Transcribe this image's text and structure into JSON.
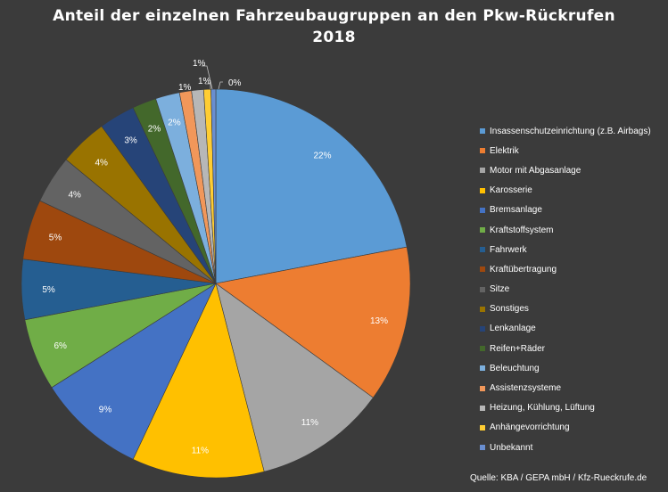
{
  "title_line1": "Anteil der einzelnen Fahrzeubaugruppen an den Pkw-Rückrufen",
  "title_line2": "2018",
  "source": "Quelle: KBA / GEPA mbH / Kfz-Rueckrufe.de",
  "chart_data": {
    "type": "pie",
    "title": "Anteil der einzelnen Fahrzeubaugruppen an den Pkw-Rückrufen 2018",
    "unit": "%",
    "legend_position": "right",
    "slices": [
      {
        "name": "Insassenschutzeinrichtung (z.B. Airbags)",
        "value": 22,
        "label": "22%",
        "color": "#5b9bd5"
      },
      {
        "name": "Elektrik",
        "value": 13,
        "label": "13%",
        "color": "#ed7d31"
      },
      {
        "name": "Motor mit Abgasanlage",
        "value": 11,
        "label": "11%",
        "color": "#a5a5a5"
      },
      {
        "name": "Karosserie",
        "value": 11,
        "label": "11%",
        "color": "#ffc000"
      },
      {
        "name": "Bremsanlage",
        "value": 9,
        "label": "9%",
        "color": "#4472c4"
      },
      {
        "name": "Kraftstoffsystem",
        "value": 6,
        "label": "6%",
        "color": "#70ad47"
      },
      {
        "name": "Fahrwerk",
        "value": 5,
        "label": "5%",
        "color": "#255e91"
      },
      {
        "name": "Kraftübertragung",
        "value": 5,
        "label": "5%",
        "color": "#9e480e"
      },
      {
        "name": "Sitze",
        "value": 4,
        "label": "4%",
        "color": "#636363"
      },
      {
        "name": "Sonstiges",
        "value": 4,
        "label": "4%",
        "color": "#997300"
      },
      {
        "name": "Lenkanlage",
        "value": 3,
        "label": "3%",
        "color": "#264478"
      },
      {
        "name": "Reifen+Räder",
        "value": 2,
        "label": "2%",
        "color": "#43682b"
      },
      {
        "name": "Beleuchtung",
        "value": 2,
        "label": "2%",
        "color": "#7cafdd"
      },
      {
        "name": "Assistenzsysteme",
        "value": 1,
        "label": "1%",
        "color": "#f1975a"
      },
      {
        "name": "Heizung, Kühlung, Lüftung",
        "value": 1,
        "label": "1%",
        "color": "#b7b7b7"
      },
      {
        "name": "Anhängevorrichtung",
        "value": 0.6,
        "label": "1%",
        "color": "#ffcd33"
      },
      {
        "name": "Unbekannt",
        "value": 0.4,
        "label": "0%",
        "color": "#698ed0"
      }
    ]
  }
}
